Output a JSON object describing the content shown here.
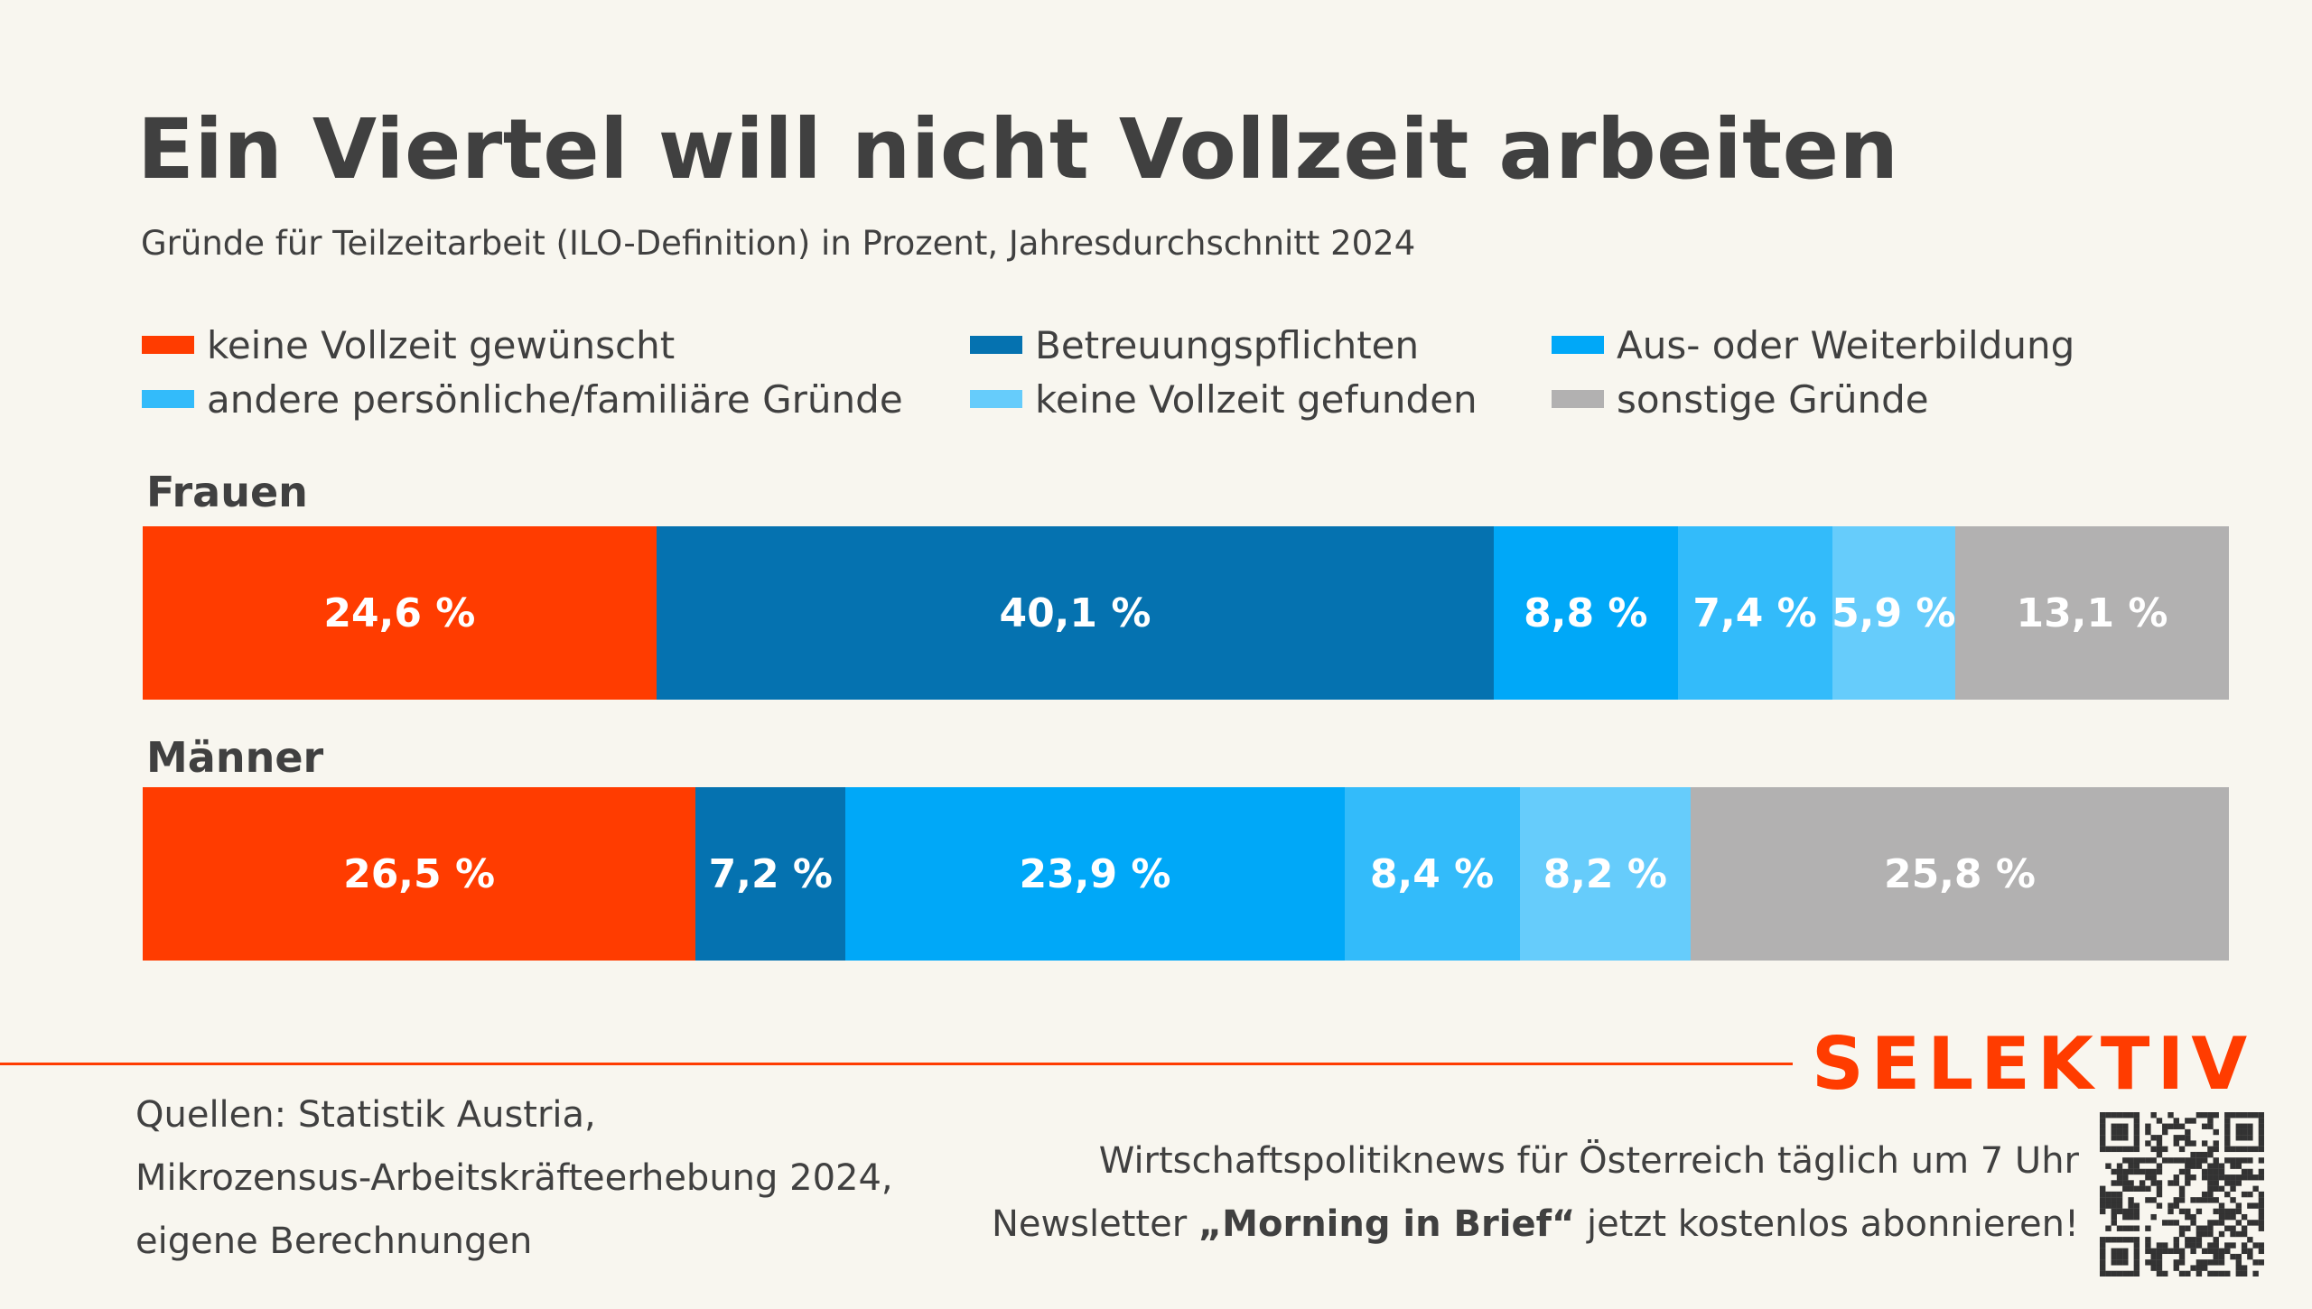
{
  "chart_data": {
    "type": "bar",
    "orientation": "horizontal-stacked-100",
    "title": "Ein Viertel will nicht Vollzeit arbeiten",
    "subtitle": "Gründe für Teilzeitarbeit (ILO-Definition) in Prozent, Jahresdurchschnitt 2024",
    "legend": [
      {
        "name": "keine Vollzeit gewünscht",
        "color": "#ff3c00"
      },
      {
        "name": "Betreuungspflichten",
        "color": "#0572b0"
      },
      {
        "name": "Aus- oder Weiterbildung",
        "color": "#00a8f8"
      },
      {
        "name": "andere persönliche/familiäre Gründe",
        "color": "#33bbfa"
      },
      {
        "name": "keine Vollzeit gefunden",
        "color": "#66ccfb"
      },
      {
        "name": "sonstige Gründe",
        "color": "#b2b1b1"
      }
    ],
    "legend_placement": "top",
    "categories": [
      "Frauen",
      "Männer"
    ],
    "series": [
      {
        "name": "keine Vollzeit gewünscht",
        "values": [
          24.6,
          26.5
        ],
        "labels": [
          "24,6 %",
          "26,5 %"
        ]
      },
      {
        "name": "Betreuungspflichten",
        "values": [
          40.1,
          7.2
        ],
        "labels": [
          "40,1 %",
          "7,2 %"
        ]
      },
      {
        "name": "Aus- oder Weiterbildung",
        "values": [
          8.8,
          23.9
        ],
        "labels": [
          "8,8 %",
          "23,9 %"
        ]
      },
      {
        "name": "andere persönliche/familiäre Gründe",
        "values": [
          7.4,
          8.4
        ],
        "labels": [
          "7,4 %",
          "8,4 %"
        ]
      },
      {
        "name": "keine Vollzeit gefunden",
        "values": [
          5.9,
          8.2
        ],
        "labels": [
          "5,9 %",
          "8,2 %"
        ]
      },
      {
        "name": "sonstige Gründe",
        "values": [
          13.1,
          25.8
        ],
        "labels": [
          "13,1 %",
          "25,8 %"
        ]
      }
    ],
    "grid": false
  },
  "footer": {
    "source_lines": [
      "Quellen: Statistik Austria,",
      "Mikrozensus-Arbeitskräfteerhebung 2024,",
      "eigene Berechnungen"
    ],
    "brand": "SELEKTIV",
    "promo_line1": "Wirtschaftspolitiknews für Österreich täglich um 7 Uhr",
    "promo_line2_before": "Newsletter ",
    "promo_line2_bold": "„Morning in Brief“",
    "promo_line2_after": " jetzt kostenlos abonnieren!",
    "accent_color": "#ff3c00",
    "qr_icon": "qr-code-icon"
  }
}
